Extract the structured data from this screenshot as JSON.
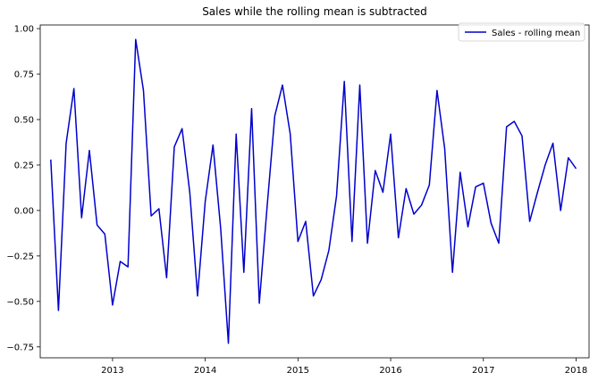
{
  "chart_data": {
    "type": "line",
    "title": "Sales while the rolling mean is subtracted",
    "xlabel": "",
    "ylabel": "",
    "xlim": [
      2012.22,
      2018.14
    ],
    "ylim": [
      -0.81,
      1.02
    ],
    "x_ticks": [
      2013,
      2014,
      2015,
      2016,
      2017,
      2018
    ],
    "x_tick_labels": [
      "2013",
      "2014",
      "2015",
      "2016",
      "2017",
      "2018"
    ],
    "y_ticks": [
      -0.75,
      -0.5,
      -0.25,
      0.0,
      0.25,
      0.5,
      0.75,
      1.0
    ],
    "y_tick_labels": [
      "−0.75",
      "−0.50",
      "−0.25",
      "0.00",
      "0.25",
      "0.50",
      "0.75",
      "1.00"
    ],
    "grid": false,
    "legend_position": "top-right",
    "colors": {
      "series": "#0000cc"
    },
    "series": [
      {
        "name": "Sales - rolling mean",
        "color": "#0000cc",
        "x": [
          "2012-05",
          "2012-06",
          "2012-07",
          "2012-08",
          "2012-09",
          "2012-10",
          "2012-11",
          "2012-12",
          "2013-01",
          "2013-02",
          "2013-03",
          "2013-04",
          "2013-05",
          "2013-06",
          "2013-07",
          "2013-08",
          "2013-09",
          "2013-10",
          "2013-11",
          "2013-12",
          "2014-01",
          "2014-02",
          "2014-03",
          "2014-04",
          "2014-05",
          "2014-06",
          "2014-07",
          "2014-08",
          "2014-09",
          "2014-10",
          "2014-11",
          "2014-12",
          "2015-01",
          "2015-02",
          "2015-03",
          "2015-04",
          "2015-05",
          "2015-06",
          "2015-07",
          "2015-08",
          "2015-09",
          "2015-10",
          "2015-11",
          "2015-12",
          "2016-01",
          "2016-02",
          "2016-03",
          "2016-04",
          "2016-05",
          "2016-06",
          "2016-07",
          "2016-08",
          "2016-09",
          "2016-10",
          "2016-11",
          "2016-12",
          "2017-01",
          "2017-02",
          "2017-03",
          "2017-04",
          "2017-05",
          "2017-06",
          "2017-07",
          "2017-08",
          "2017-09",
          "2017-10",
          "2017-11",
          "2017-12",
          "2018-01"
        ],
        "values": [
          0.28,
          -0.55,
          0.37,
          0.67,
          -0.04,
          0.33,
          -0.08,
          -0.13,
          -0.52,
          -0.28,
          -0.31,
          0.94,
          0.66,
          -0.03,
          0.01,
          -0.37,
          0.35,
          0.45,
          0.1,
          -0.47,
          0.05,
          0.36,
          -0.1,
          -0.73,
          0.42,
          -0.34,
          0.56,
          -0.51,
          0.02,
          0.52,
          0.69,
          0.42,
          -0.17,
          -0.06,
          -0.47,
          -0.38,
          -0.22,
          0.08,
          0.71,
          -0.17,
          0.69,
          -0.18,
          0.22,
          0.1,
          0.42,
          -0.15,
          0.12,
          -0.02,
          0.03,
          0.14,
          0.66,
          0.34,
          -0.34,
          0.21,
          -0.09,
          0.13,
          0.15,
          -0.07,
          -0.18,
          0.46,
          0.49,
          0.41,
          -0.06,
          0.1,
          0.25,
          0.37,
          0.0,
          0.29,
          0.23
        ]
      }
    ]
  }
}
